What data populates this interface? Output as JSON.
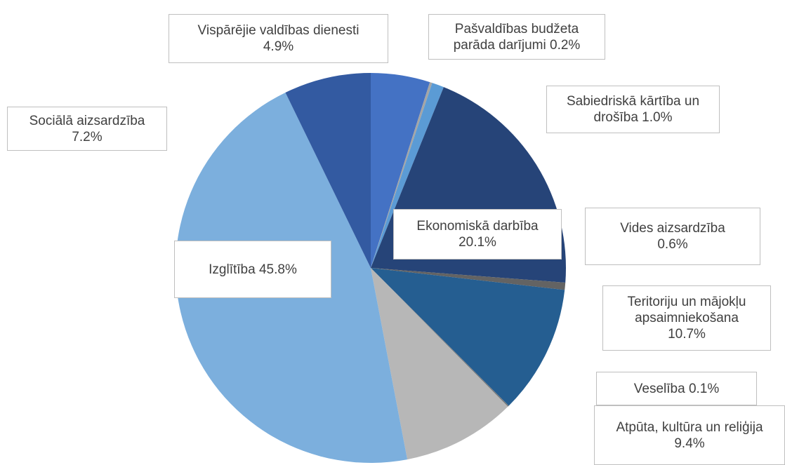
{
  "chart_data": {
    "type": "pie",
    "categories": [
      "Vispārējie valdības dienesti",
      "Pašvaldības  budžeta parāda darījumi",
      "Sabiedriskā kārtība un drošība",
      "Ekonomiskā darbība",
      "Vides aizsardzība",
      "Teritoriju un mājokļu apsaimniekošana",
      "Veselība",
      "Atpūta, kultūra un reliģija",
      "Izglītība",
      "Sociālā aizsardzība"
    ],
    "values": [
      4.9,
      0.2,
      1.0,
      20.1,
      0.6,
      10.7,
      0.1,
      9.4,
      45.8,
      7.2
    ],
    "value_labels": [
      "4.9%",
      "0.2%",
      "1.0%",
      "20.1%",
      "0.6%",
      "10.7%",
      "0.1%",
      "9.4%",
      "45.8%",
      "7.2%"
    ],
    "colors": [
      "#4472c4",
      "#a5a5a5",
      "#5b9bd5",
      "#264478",
      "#636363",
      "#255e91",
      "#7a7a7a",
      "#b7b7b7",
      "#7cafdd",
      "#335aa1"
    ]
  }
}
